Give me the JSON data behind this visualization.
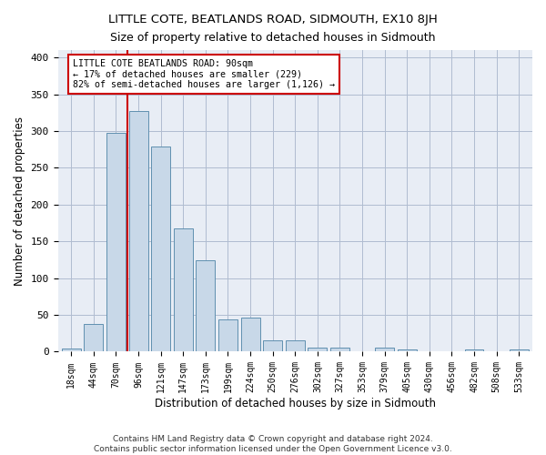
{
  "title": "LITTLE COTE, BEATLANDS ROAD, SIDMOUTH, EX10 8JH",
  "subtitle": "Size of property relative to detached houses in Sidmouth",
  "xlabel": "Distribution of detached houses by size in Sidmouth",
  "ylabel": "Number of detached properties",
  "bar_color": "#c8d8e8",
  "bar_edge_color": "#6090b0",
  "categories": [
    "18sqm",
    "44sqm",
    "70sqm",
    "96sqm",
    "121sqm",
    "147sqm",
    "173sqm",
    "199sqm",
    "224sqm",
    "250sqm",
    "276sqm",
    "302sqm",
    "327sqm",
    "353sqm",
    "379sqm",
    "405sqm",
    "430sqm",
    "456sqm",
    "482sqm",
    "508sqm",
    "533sqm"
  ],
  "values": [
    4,
    38,
    297,
    327,
    279,
    168,
    124,
    44,
    46,
    15,
    15,
    5,
    6,
    0,
    6,
    3,
    0,
    0,
    3,
    0,
    3
  ],
  "property_bin_index": 3,
  "vline_color": "#cc0000",
  "annotation_text": "LITTLE COTE BEATLANDS ROAD: 90sqm\n← 17% of detached houses are smaller (229)\n82% of semi-detached houses are larger (1,126) →",
  "annotation_box_color": "white",
  "annotation_box_edge": "#cc0000",
  "ylim": [
    0,
    410
  ],
  "yticks": [
    0,
    50,
    100,
    150,
    200,
    250,
    300,
    350,
    400
  ],
  "grid_color": "#b0bcd0",
  "bg_color": "#e8edf5",
  "footer": "Contains HM Land Registry data © Crown copyright and database right 2024.\nContains public sector information licensed under the Open Government Licence v3.0.",
  "title_fontsize": 9.5,
  "subtitle_fontsize": 9,
  "xlabel_fontsize": 8.5,
  "ylabel_fontsize": 8.5,
  "footer_fontsize": 6.5
}
